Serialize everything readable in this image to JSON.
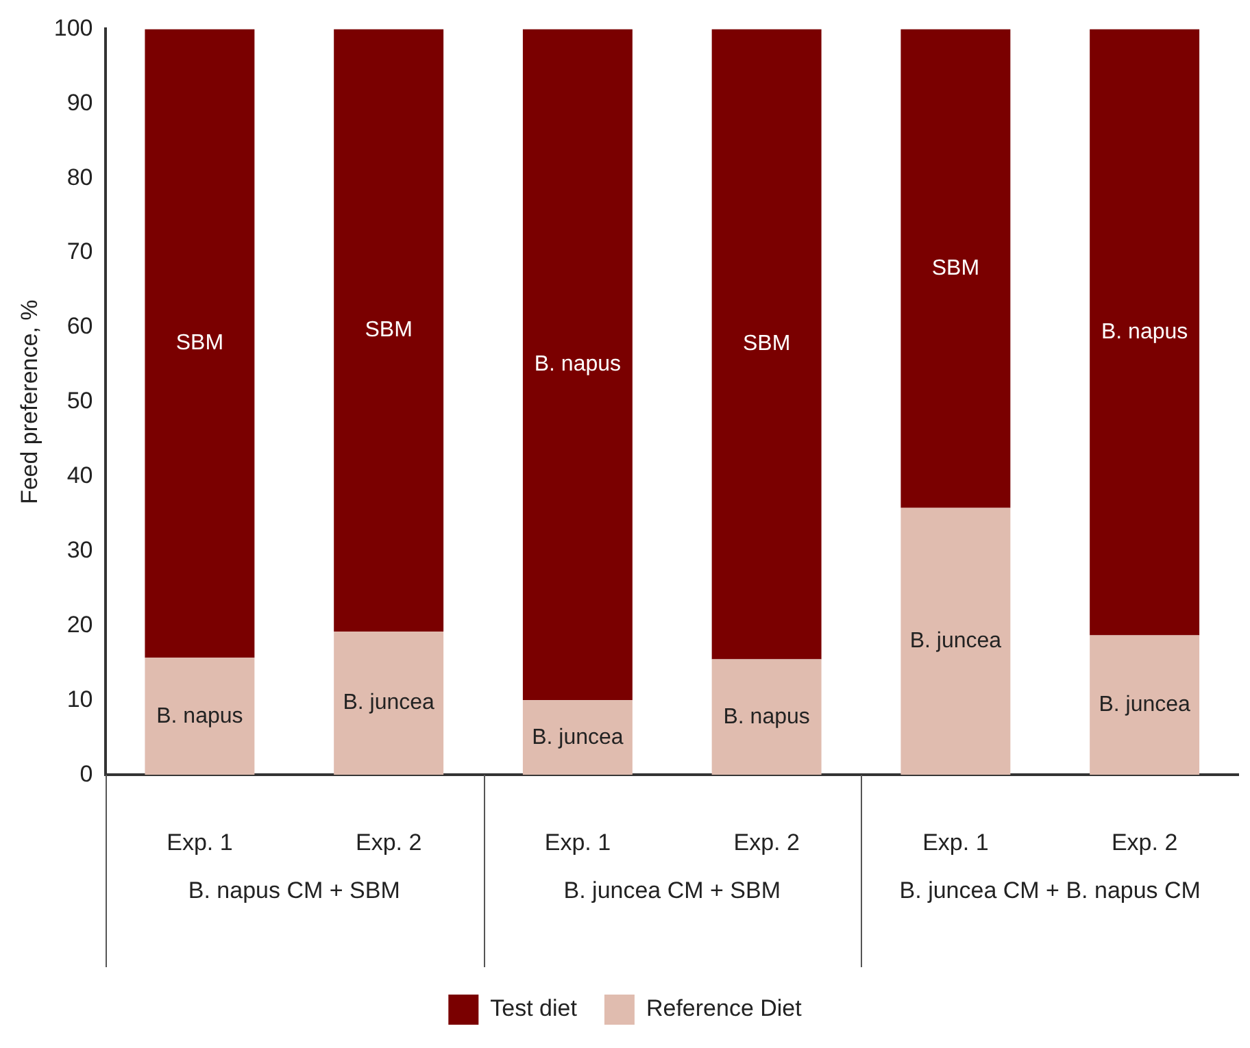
{
  "chart_data": {
    "type": "bar",
    "stacked": true,
    "ylabel": "Feed preference, %",
    "categories": [
      "Exp. 1",
      "Exp. 2",
      "Exp. 1",
      "Exp. 2",
      "Exp. 1",
      "Exp. 2"
    ],
    "series": [
      {
        "name": "Reference Diet",
        "color": "#e0bcaf",
        "values": [
          15.7,
          19.2,
          10.0,
          15.5,
          35.8,
          18.7
        ],
        "value_labels": [
          "B. napus",
          "B. juncea",
          "B. juncea",
          "B. napus",
          "B. juncea",
          "B. juncea"
        ]
      },
      {
        "name": "Test diet",
        "color": "#7a0000",
        "values": [
          84.3,
          80.8,
          90.0,
          84.5,
          64.2,
          81.3
        ],
        "value_labels": [
          "SBM",
          "SBM",
          "B. napus",
          "SBM",
          "SBM",
          "B. napus"
        ]
      }
    ],
    "annotations": [
      "B. napus CM + SBM",
      "B. juncea CM + SBM",
      "B. juncea CM + B. napus CM"
    ],
    "ylim": [
      0,
      100
    ],
    "yticks": [
      0,
      10,
      20,
      30,
      40,
      50,
      60,
      70,
      80,
      90,
      100
    ],
    "grid": false,
    "legend": "bottom"
  }
}
